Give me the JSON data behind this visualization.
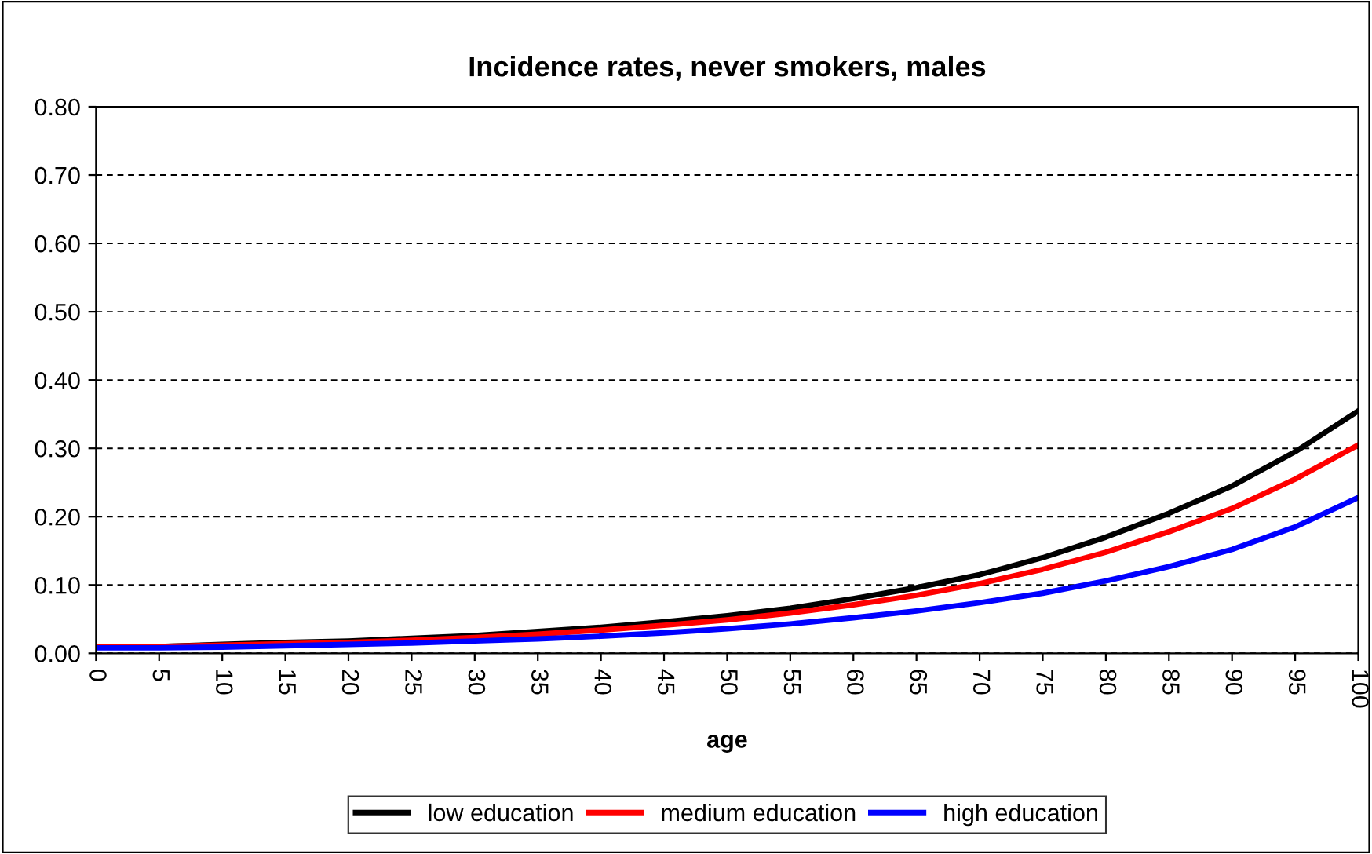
{
  "chart_data": {
    "type": "line",
    "title": "Incidence rates, never smokers, males",
    "xlabel": "age",
    "x": [
      0,
      5,
      10,
      15,
      20,
      25,
      30,
      35,
      40,
      45,
      50,
      55,
      60,
      65,
      70,
      75,
      80,
      85,
      90,
      95,
      100
    ],
    "xlim": [
      0,
      100
    ],
    "xticks": [
      0,
      5,
      10,
      15,
      20,
      25,
      30,
      35,
      40,
      45,
      50,
      55,
      60,
      65,
      70,
      75,
      80,
      85,
      90,
      95,
      100
    ],
    "ylim": [
      0,
      0.8
    ],
    "yticks": [
      {
        "value": 0,
        "label": "0.00"
      },
      {
        "value": 0.1,
        "label": "0.10"
      },
      {
        "value": 0.2,
        "label": "0.20"
      },
      {
        "value": 0.3,
        "label": "0.30"
      },
      {
        "value": 0.4,
        "label": "0.40"
      },
      {
        "value": 0.5,
        "label": "0.50"
      },
      {
        "value": 0.6,
        "label": "0.60"
      },
      {
        "value": 0.7,
        "label": "0.70"
      },
      {
        "value": 0.8,
        "label": "0.80"
      }
    ],
    "grid": "y",
    "legend": "bottom",
    "marker": "none",
    "line_style": "solid",
    "series": [
      {
        "name": "low education",
        "color": "#000000",
        "values": [
          0.01,
          0.01,
          0.013,
          0.016,
          0.018,
          0.022,
          0.026,
          0.032,
          0.038,
          0.046,
          0.055,
          0.066,
          0.08,
          0.096,
          0.115,
          0.14,
          0.17,
          0.205,
          0.245,
          0.295,
          0.355
        ]
      },
      {
        "name": "medium education",
        "color": "#ff0000",
        "values": [
          0.01,
          0.01,
          0.012,
          0.014,
          0.016,
          0.019,
          0.023,
          0.028,
          0.034,
          0.041,
          0.049,
          0.059,
          0.071,
          0.085,
          0.102,
          0.123,
          0.148,
          0.178,
          0.212,
          0.255,
          0.305
        ]
      },
      {
        "name": "high education",
        "color": "#0000ff",
        "values": [
          0.008,
          0.008,
          0.009,
          0.011,
          0.013,
          0.015,
          0.018,
          0.021,
          0.025,
          0.03,
          0.036,
          0.043,
          0.052,
          0.062,
          0.074,
          0.088,
          0.106,
          0.127,
          0.152,
          0.185,
          0.228
        ]
      }
    ]
  }
}
